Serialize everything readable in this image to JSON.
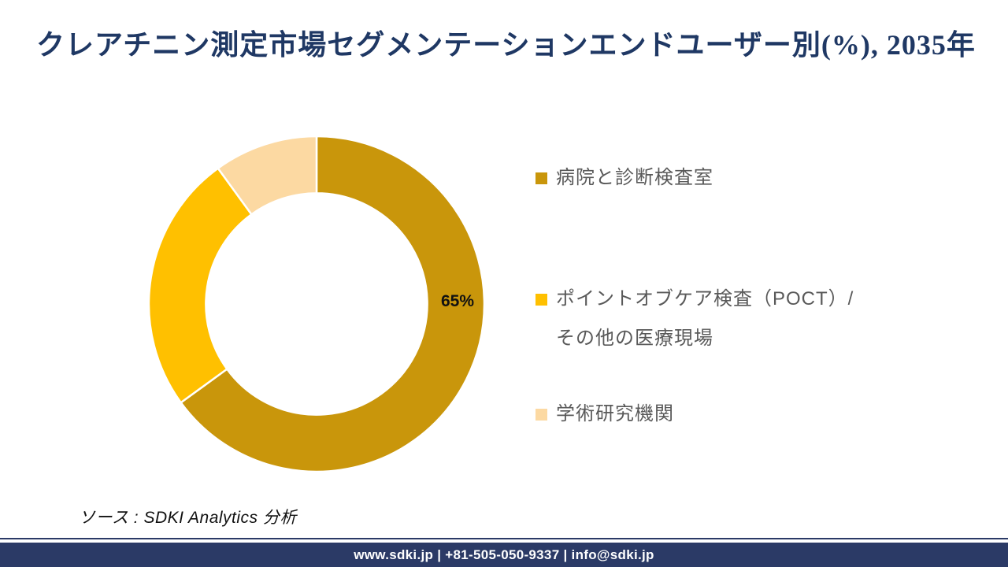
{
  "title": "クレアチニン測定市場セグメンテーションエンドユーザー別(%), 2035年",
  "chart_data": {
    "type": "pie",
    "subtype": "donut",
    "title": "クレアチニン測定市場セグメンテーションエンドユーザー別(%), 2035年",
    "categories": [
      "病院と診断検査室",
      "ポイントオブケア検査（POCT）/ その他の医療現場",
      "学術研究機関"
    ],
    "values": [
      65,
      25,
      10
    ],
    "unit": "%",
    "colors": [
      "#C9960B",
      "#FFC000",
      "#FCD9A2"
    ],
    "data_labels": [
      "65%",
      "",
      ""
    ],
    "visible_label": "65%",
    "donut_hole_ratio": 0.66,
    "start_angle_deg": 0,
    "direction": "clockwise",
    "legend_position": "right",
    "separator_color": "#FFFFFF"
  },
  "legend": {
    "items": [
      {
        "label": "病院と診断検査室",
        "label_line2": "",
        "color": "#C9960B"
      },
      {
        "label": "ポイントオブケア検査（POCT）/",
        "label_line2": "その他の医療現場",
        "color": "#FFC000"
      },
      {
        "label": "学術研究機関",
        "label_line2": "",
        "color": "#FCD9A2"
      }
    ]
  },
  "donut_label": "65%",
  "source": "ソース : SDKI Analytics  分析",
  "footer": {
    "text": "www.sdki.jp | +81-505-050-9337 | info@sdki.jp",
    "bar_color": "#2B3A66"
  },
  "colors": {
    "title_text": "#1F3864",
    "legend_text": "#595959",
    "footer_bar": "#2B3A66",
    "label_text": "#111111"
  }
}
